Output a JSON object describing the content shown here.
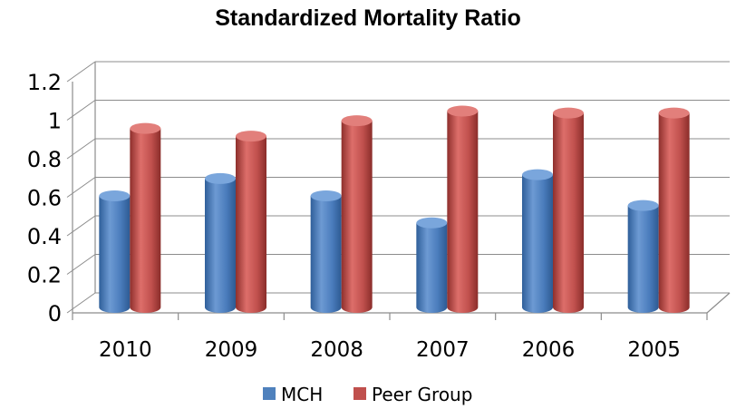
{
  "chart_data": {
    "type": "bar",
    "title": "Standardized Mortality Ratio",
    "xlabel": "",
    "ylabel": "",
    "categories": [
      "2010",
      "2009",
      "2008",
      "2007",
      "2006",
      "2005"
    ],
    "series": [
      {
        "name": "MCH",
        "values": [
          0.56,
          0.65,
          0.56,
          0.42,
          0.67,
          0.51
        ],
        "color": "#4f81bd"
      },
      {
        "name": "Peer Group",
        "values": [
          0.91,
          0.87,
          0.95,
          1.0,
          0.99,
          0.99
        ],
        "color": "#c0504d"
      }
    ],
    "ylim": [
      0,
      1.2
    ],
    "yticks": [
      "0",
      "0.2",
      "0.4",
      "0.6",
      "0.8",
      "1",
      "1.2"
    ],
    "grid": true,
    "legend_position": "bottom",
    "style": "3d-cylinder"
  }
}
